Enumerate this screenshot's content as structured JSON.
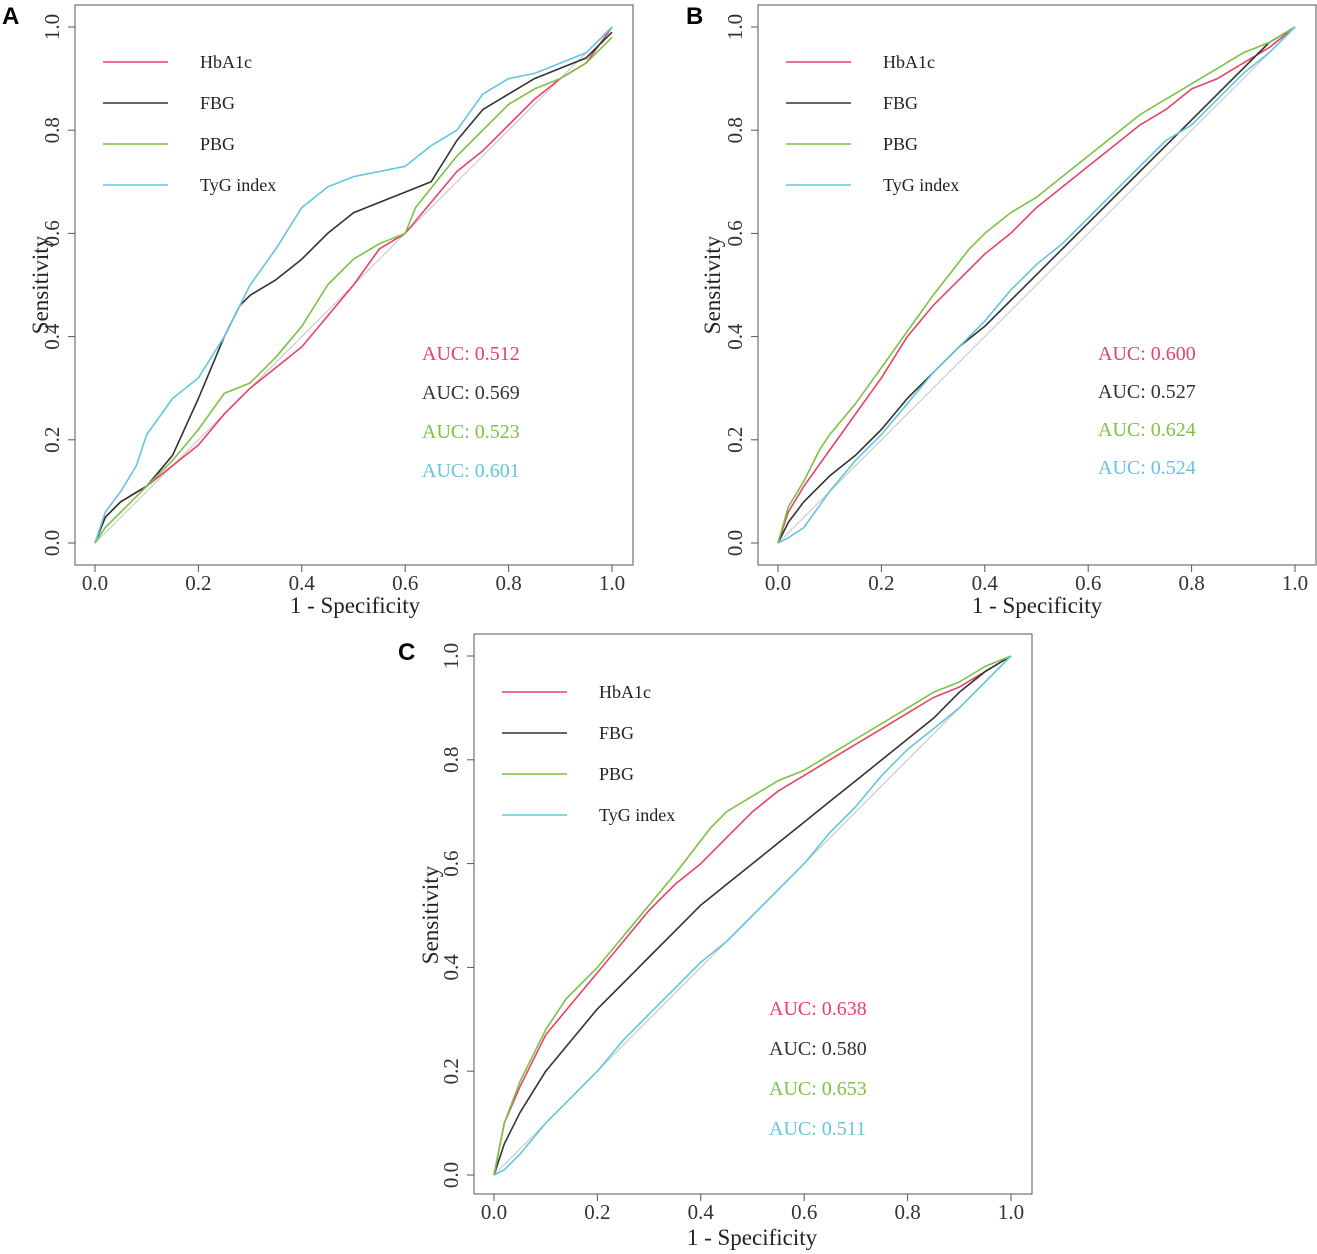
{
  "chart_data": [
    {
      "type": "line",
      "panel": "A",
      "xlabel": "1 - Specificity",
      "ylabel": "Sensitivity",
      "xlim": [
        0,
        1
      ],
      "ylim": [
        0,
        1
      ],
      "xticks": [
        "0.0",
        "0.2",
        "0.4",
        "0.6",
        "0.8",
        "1.0"
      ],
      "yticks": [
        "0.0",
        "0.2",
        "0.4",
        "0.6",
        "0.8",
        "1.0"
      ],
      "reference_line": true,
      "series": [
        {
          "name": "HbA1c",
          "color": "#e8416a",
          "auc": "AUC: 0.512",
          "x": [
            0,
            0.02,
            0.05,
            0.1,
            0.15,
            0.2,
            0.25,
            0.3,
            0.35,
            0.4,
            0.45,
            0.5,
            0.55,
            0.6,
            0.65,
            0.7,
            0.75,
            0.8,
            0.85,
            0.9,
            0.95,
            1
          ],
          "y": [
            0,
            0.05,
            0.08,
            0.11,
            0.15,
            0.19,
            0.25,
            0.3,
            0.34,
            0.38,
            0.44,
            0.5,
            0.57,
            0.6,
            0.66,
            0.72,
            0.76,
            0.81,
            0.86,
            0.9,
            0.93,
            1
          ]
        },
        {
          "name": "FBG",
          "color": "#333333",
          "auc": "AUC: 0.569",
          "x": [
            0,
            0.02,
            0.05,
            0.1,
            0.15,
            0.2,
            0.25,
            0.28,
            0.3,
            0.35,
            0.4,
            0.45,
            0.5,
            0.55,
            0.6,
            0.65,
            0.7,
            0.75,
            0.8,
            0.85,
            0.9,
            0.95,
            1
          ],
          "y": [
            0,
            0.05,
            0.08,
            0.11,
            0.17,
            0.28,
            0.4,
            0.46,
            0.48,
            0.51,
            0.55,
            0.6,
            0.64,
            0.66,
            0.68,
            0.7,
            0.78,
            0.84,
            0.87,
            0.9,
            0.92,
            0.94,
            0.99
          ]
        },
        {
          "name": "PBG",
          "color": "#7cc243",
          "auc": "AUC: 0.523",
          "x": [
            0,
            0.02,
            0.06,
            0.1,
            0.15,
            0.2,
            0.25,
            0.3,
            0.35,
            0.4,
            0.45,
            0.5,
            0.55,
            0.6,
            0.62,
            0.66,
            0.7,
            0.75,
            0.8,
            0.85,
            0.9,
            0.95,
            1
          ],
          "y": [
            0,
            0.03,
            0.07,
            0.11,
            0.16,
            0.22,
            0.29,
            0.31,
            0.36,
            0.42,
            0.5,
            0.55,
            0.58,
            0.6,
            0.65,
            0.7,
            0.75,
            0.8,
            0.85,
            0.88,
            0.9,
            0.93,
            0.98
          ]
        },
        {
          "name": "TyG index",
          "color": "#62c6df",
          "auc": "AUC: 0.601",
          "x": [
            0,
            0.02,
            0.05,
            0.08,
            0.1,
            0.15,
            0.2,
            0.25,
            0.3,
            0.35,
            0.4,
            0.45,
            0.5,
            0.55,
            0.6,
            0.65,
            0.7,
            0.75,
            0.8,
            0.85,
            0.9,
            0.95,
            1
          ],
          "y": [
            0,
            0.06,
            0.1,
            0.15,
            0.21,
            0.28,
            0.32,
            0.4,
            0.5,
            0.57,
            0.65,
            0.69,
            0.71,
            0.72,
            0.73,
            0.77,
            0.8,
            0.87,
            0.9,
            0.91,
            0.93,
            0.95,
            1
          ]
        }
      ]
    },
    {
      "type": "line",
      "panel": "B",
      "xlabel": "1 - Specificity",
      "ylabel": "Sensitivity",
      "xlim": [
        0,
        1
      ],
      "ylim": [
        0,
        1
      ],
      "xticks": [
        "0.0",
        "0.2",
        "0.4",
        "0.6",
        "0.8",
        "1.0"
      ],
      "yticks": [
        "0.0",
        "0.2",
        "0.4",
        "0.6",
        "0.8",
        "1.0"
      ],
      "reference_line": true,
      "series": [
        {
          "name": "HbA1c",
          "color": "#e8416a",
          "auc": "AUC: 0.600",
          "x": [
            0,
            0.02,
            0.05,
            0.1,
            0.15,
            0.2,
            0.25,
            0.3,
            0.35,
            0.4,
            0.45,
            0.5,
            0.55,
            0.6,
            0.65,
            0.7,
            0.75,
            0.8,
            0.85,
            0.9,
            0.95,
            1
          ],
          "y": [
            0,
            0.06,
            0.11,
            0.18,
            0.25,
            0.32,
            0.4,
            0.46,
            0.51,
            0.56,
            0.6,
            0.65,
            0.69,
            0.73,
            0.77,
            0.81,
            0.84,
            0.88,
            0.9,
            0.93,
            0.96,
            1
          ]
        },
        {
          "name": "FBG",
          "color": "#333333",
          "auc": "AUC: 0.527",
          "x": [
            0,
            0.02,
            0.05,
            0.1,
            0.15,
            0.2,
            0.25,
            0.3,
            0.35,
            0.4,
            0.45,
            0.5,
            0.55,
            0.6,
            0.65,
            0.7,
            0.75,
            0.8,
            0.85,
            0.9,
            0.95,
            1
          ],
          "y": [
            0,
            0.04,
            0.08,
            0.13,
            0.17,
            0.22,
            0.28,
            0.33,
            0.38,
            0.42,
            0.47,
            0.52,
            0.57,
            0.62,
            0.67,
            0.72,
            0.77,
            0.82,
            0.87,
            0.92,
            0.97,
            1
          ]
        },
        {
          "name": "PBG",
          "color": "#7cc243",
          "auc": "AUC: 0.624",
          "x": [
            0,
            0.02,
            0.05,
            0.08,
            0.1,
            0.15,
            0.2,
            0.25,
            0.3,
            0.37,
            0.4,
            0.45,
            0.5,
            0.55,
            0.6,
            0.65,
            0.7,
            0.75,
            0.8,
            0.85,
            0.9,
            0.95,
            1
          ],
          "y": [
            0,
            0.07,
            0.12,
            0.18,
            0.21,
            0.27,
            0.34,
            0.41,
            0.48,
            0.57,
            0.6,
            0.64,
            0.67,
            0.71,
            0.75,
            0.79,
            0.83,
            0.86,
            0.89,
            0.92,
            0.95,
            0.97,
            1
          ]
        },
        {
          "name": "TyG index",
          "color": "#62c6df",
          "auc": "AUC: 0.524",
          "x": [
            0,
            0.02,
            0.05,
            0.1,
            0.15,
            0.2,
            0.25,
            0.3,
            0.35,
            0.4,
            0.45,
            0.5,
            0.55,
            0.6,
            0.65,
            0.7,
            0.75,
            0.8,
            0.85,
            0.9,
            0.95,
            1
          ],
          "y": [
            0,
            0.01,
            0.03,
            0.1,
            0.16,
            0.21,
            0.27,
            0.33,
            0.38,
            0.43,
            0.49,
            0.54,
            0.58,
            0.63,
            0.68,
            0.73,
            0.78,
            0.81,
            0.86,
            0.91,
            0.95,
            1
          ]
        }
      ]
    },
    {
      "type": "line",
      "panel": "C",
      "xlabel": "1 - Specificity",
      "ylabel": "Sensitivity",
      "xlim": [
        0,
        1
      ],
      "ylim": [
        0,
        1
      ],
      "xticks": [
        "0.0",
        "0.2",
        "0.4",
        "0.6",
        "0.8",
        "1.0"
      ],
      "yticks": [
        "0.0",
        "0.2",
        "0.4",
        "0.6",
        "0.8",
        "1.0"
      ],
      "reference_line": true,
      "series": [
        {
          "name": "HbA1c",
          "color": "#e8416a",
          "auc": "AUC: 0.638",
          "x": [
            0,
            0.02,
            0.05,
            0.1,
            0.15,
            0.2,
            0.25,
            0.3,
            0.35,
            0.4,
            0.45,
            0.5,
            0.55,
            0.6,
            0.65,
            0.7,
            0.75,
            0.8,
            0.85,
            0.9,
            0.95,
            1
          ],
          "y": [
            0,
            0.1,
            0.17,
            0.27,
            0.33,
            0.39,
            0.45,
            0.51,
            0.56,
            0.6,
            0.65,
            0.7,
            0.74,
            0.77,
            0.8,
            0.83,
            0.86,
            0.89,
            0.92,
            0.94,
            0.97,
            1
          ]
        },
        {
          "name": "FBG",
          "color": "#333333",
          "auc": "AUC: 0.580",
          "x": [
            0,
            0.02,
            0.05,
            0.1,
            0.15,
            0.2,
            0.25,
            0.3,
            0.35,
            0.4,
            0.45,
            0.5,
            0.55,
            0.6,
            0.65,
            0.7,
            0.75,
            0.8,
            0.85,
            0.9,
            0.95,
            1
          ],
          "y": [
            0,
            0.06,
            0.12,
            0.2,
            0.26,
            0.32,
            0.37,
            0.42,
            0.47,
            0.52,
            0.56,
            0.6,
            0.64,
            0.68,
            0.72,
            0.76,
            0.8,
            0.84,
            0.88,
            0.93,
            0.97,
            1
          ]
        },
        {
          "name": "PBG",
          "color": "#7cc243",
          "auc": "AUC: 0.653",
          "x": [
            0,
            0.02,
            0.05,
            0.1,
            0.14,
            0.2,
            0.25,
            0.3,
            0.35,
            0.42,
            0.45,
            0.5,
            0.55,
            0.6,
            0.65,
            0.7,
            0.75,
            0.8,
            0.85,
            0.9,
            0.95,
            1
          ],
          "y": [
            0,
            0.1,
            0.18,
            0.28,
            0.34,
            0.4,
            0.46,
            0.52,
            0.58,
            0.67,
            0.7,
            0.73,
            0.76,
            0.78,
            0.81,
            0.84,
            0.87,
            0.9,
            0.93,
            0.95,
            0.98,
            1
          ]
        },
        {
          "name": "TyG index",
          "color": "#62c6df",
          "auc": "AUC: 0.511",
          "x": [
            0,
            0.02,
            0.05,
            0.1,
            0.15,
            0.2,
            0.25,
            0.3,
            0.35,
            0.4,
            0.45,
            0.5,
            0.55,
            0.6,
            0.65,
            0.7,
            0.75,
            0.8,
            0.85,
            0.9,
            0.95,
            1
          ],
          "y": [
            0,
            0.01,
            0.04,
            0.1,
            0.15,
            0.2,
            0.26,
            0.31,
            0.36,
            0.41,
            0.45,
            0.5,
            0.55,
            0.6,
            0.66,
            0.71,
            0.77,
            0.82,
            0.86,
            0.9,
            0.95,
            1
          ]
        }
      ]
    }
  ]
}
